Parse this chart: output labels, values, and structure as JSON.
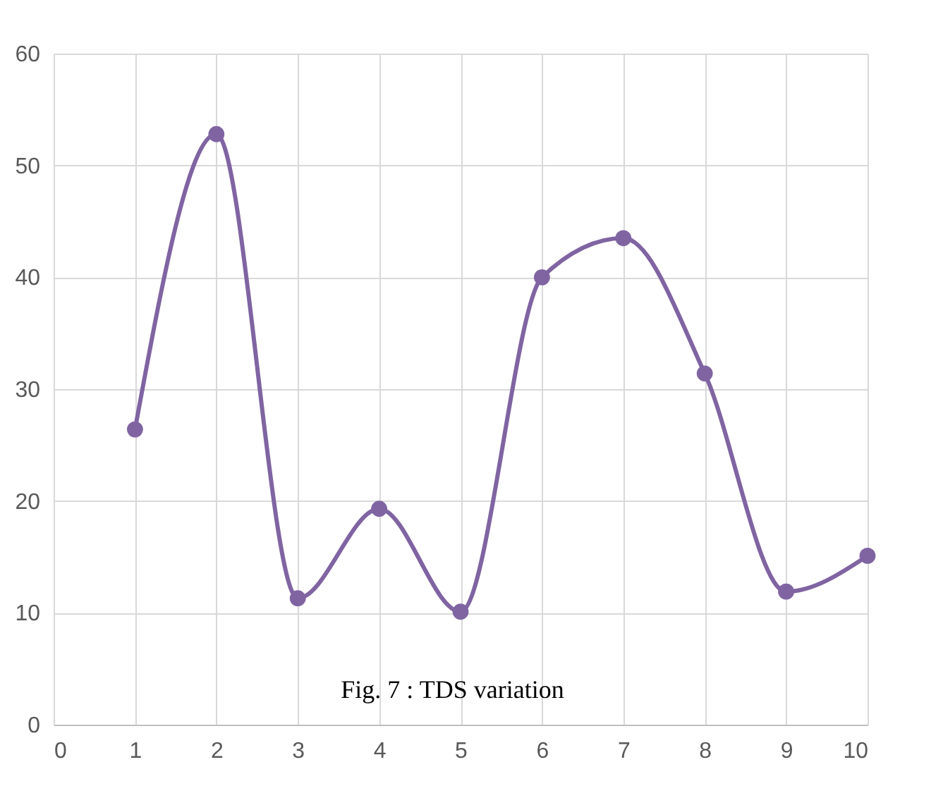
{
  "chart_data": {
    "type": "line",
    "x": [
      1,
      2,
      3,
      4,
      5,
      6,
      7,
      8,
      9,
      10
    ],
    "series": [
      {
        "color": "#8064a2",
        "values": [
          26.4,
          52.8,
          11.3,
          19.3,
          10.1,
          40,
          43.5,
          31.4,
          11.9,
          15.1
        ]
      }
    ],
    "xlim": [
      0,
      10
    ],
    "xticks": [
      0,
      1,
      2,
      3,
      4,
      5,
      6,
      7,
      8,
      9,
      10
    ],
    "ylim": [
      0,
      60
    ],
    "yticks": [
      0,
      10,
      20,
      30,
      40,
      50,
      60
    ],
    "grid": true,
    "marker": "circle",
    "line_style": "solid",
    "annotations": [
      "Fig. 7 : TDS variation"
    ]
  }
}
